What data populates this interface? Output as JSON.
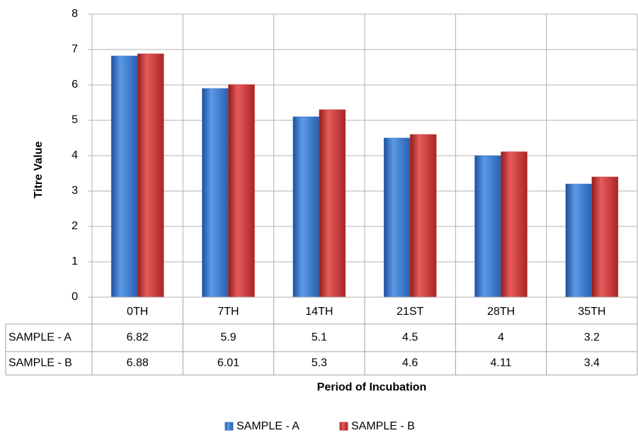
{
  "chart_data": {
    "type": "bar",
    "y_label": "Titre Value",
    "x_label": "Period of Incubation",
    "categories": [
      "0TH",
      "7TH",
      "14TH",
      "21ST",
      "28TH",
      "35TH"
    ],
    "series": [
      {
        "name": "SAMPLE - A",
        "color": "#3a78d0",
        "values": [
          6.82,
          5.9,
          5.1,
          4.5,
          4,
          3.2
        ]
      },
      {
        "name": "SAMPLE - B",
        "color": "#d03a3a",
        "values": [
          6.88,
          6.01,
          5.3,
          4.6,
          4.11,
          3.4
        ]
      }
    ],
    "ylim": [
      0,
      8
    ],
    "yticks": [
      0,
      1,
      2,
      3,
      4,
      5,
      6,
      7,
      8
    ],
    "grid": true,
    "legend": "bottom"
  }
}
